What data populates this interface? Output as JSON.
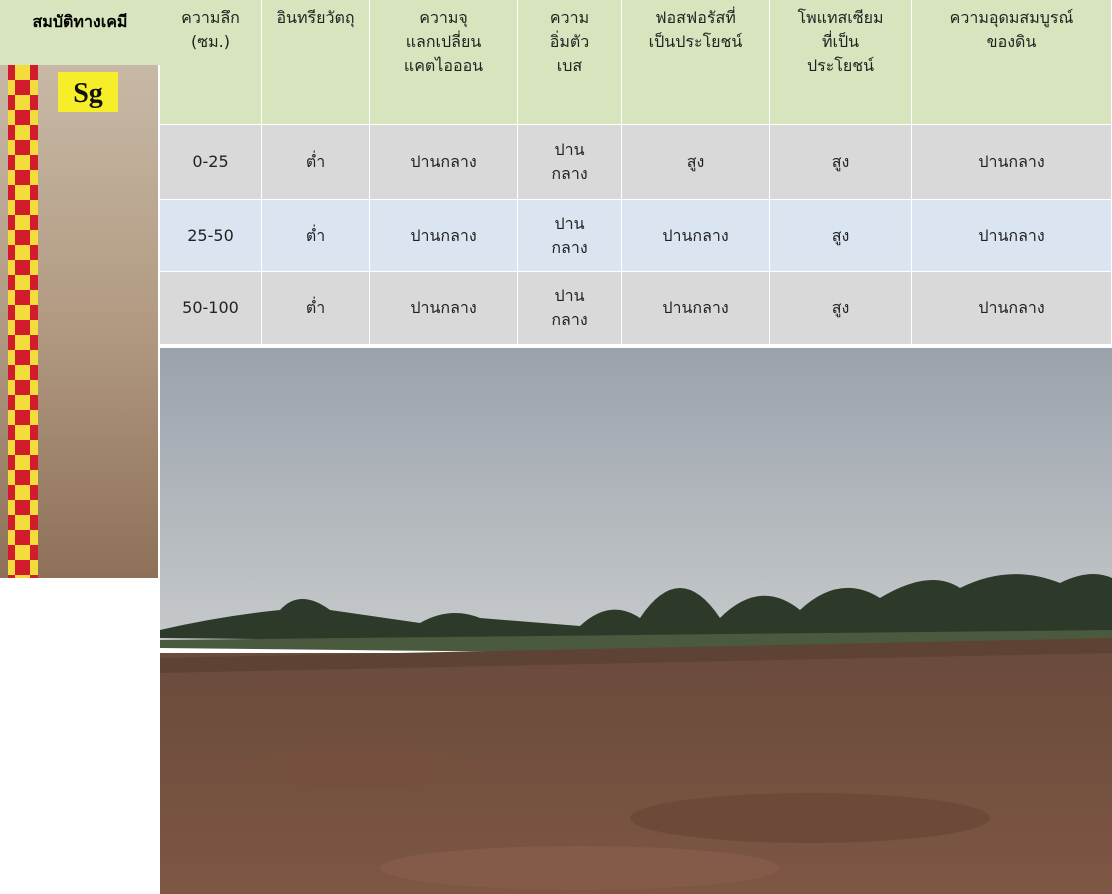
{
  "table": {
    "corner": "สมบัติทางเคมี",
    "header": [
      [
        "ความลึก",
        "(ซม.)"
      ],
      [
        "อินทรียวัตถุ"
      ],
      [
        "ความจุ",
        "แลกเปลี่ยน",
        "แคตไอออน"
      ],
      [
        "ความ",
        "อิ่มตัว",
        "เบส"
      ],
      [
        "ฟอสฟอรัสที่",
        "เป็นประโยชน์"
      ],
      [
        "โพแทสเซียม",
        "ที่เป็น",
        "ประโยชน์"
      ],
      [
        "ความอุดมสมบูรณ์",
        "ของดิน"
      ]
    ],
    "rows": [
      [
        [
          "0-25"
        ],
        [
          "ต่ำ"
        ],
        [
          "ปานกลาง"
        ],
        [
          "ปาน",
          "กลาง"
        ],
        [
          "สูง"
        ],
        [
          "สูง"
        ],
        [
          "ปานกลาง"
        ]
      ],
      [
        [
          "25-50"
        ],
        [
          "ต่ำ"
        ],
        [
          "ปานกลาง"
        ],
        [
          "ปาน",
          "กลาง"
        ],
        [
          "ปานกลาง"
        ],
        [
          "สูง"
        ],
        [
          "ปานกลาง"
        ]
      ],
      [
        [
          "50-100"
        ],
        [
          "ต่ำ"
        ],
        [
          "ปานกลาง"
        ],
        [
          "ปาน",
          "กลาง"
        ],
        [
          "ปานกลาง"
        ],
        [
          "สูง"
        ],
        [
          "ปานกลาง"
        ]
      ]
    ]
  },
  "profile_label": "Sg"
}
